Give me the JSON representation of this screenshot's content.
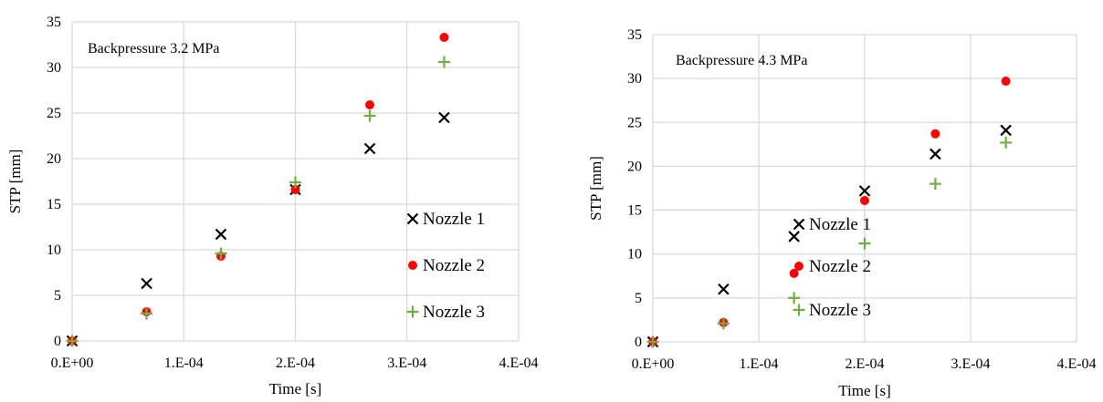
{
  "colors": {
    "nozzle1": "#000000",
    "nozzle2": "#ff0000",
    "nozzle3": "#70ad47",
    "grid": "#d9d9d9"
  },
  "chart_data": [
    {
      "type": "scatter",
      "title": "",
      "annotation": "Backpressure 3.2 MPa",
      "xlabel": "Time [s]",
      "ylabel": "STP [mm]",
      "xlim": [
        0,
        0.0004
      ],
      "ylim": [
        0,
        35
      ],
      "x_ticks": [
        0,
        0.0001,
        0.0002,
        0.0003,
        0.0004
      ],
      "x_tick_labels": [
        "0.E+00",
        "1.E-04",
        "2.E-04",
        "3.E-04",
        "4.E-04"
      ],
      "y_ticks": [
        0,
        5,
        10,
        15,
        20,
        25,
        30,
        35
      ],
      "y_tick_labels": [
        "0",
        "5",
        "10",
        "15",
        "20",
        "25",
        "30",
        "35"
      ],
      "grid": true,
      "legend": "right",
      "series": [
        {
          "name": "Nozzle 1",
          "marker": "x",
          "color": "#000000",
          "x": [
            0,
            6.67e-05,
            0.0001333,
            0.0002,
            0.0002667,
            0.0003333
          ],
          "y": [
            0,
            6.3,
            11.7,
            16.6,
            21.1,
            24.5
          ]
        },
        {
          "name": "Nozzle 2",
          "marker": "circle",
          "color": "#ff0000",
          "x": [
            0,
            6.67e-05,
            0.0001333,
            0.0002,
            0.0002667,
            0.0003333
          ],
          "y": [
            0,
            3.2,
            9.3,
            16.6,
            25.9,
            33.3
          ]
        },
        {
          "name": "Nozzle 3",
          "marker": "plus",
          "color": "#70ad47",
          "x": [
            0,
            6.67e-05,
            0.0001333,
            0.0002,
            0.0002667,
            0.0003333
          ],
          "y": [
            0,
            3.0,
            9.6,
            17.4,
            24.7,
            30.6
          ]
        }
      ]
    },
    {
      "type": "scatter",
      "title": "",
      "annotation": "Backpressure 4.3 MPa",
      "xlabel": "Time [s]",
      "ylabel": "STP [mm]",
      "xlim": [
        0,
        0.0004
      ],
      "ylim": [
        0,
        35
      ],
      "x_ticks": [
        0,
        0.0001,
        0.0002,
        0.0003,
        0.0004
      ],
      "x_tick_labels": [
        "0.E+00",
        "1.E-04",
        "2.E-04",
        "3.E-04",
        "4.E-04"
      ],
      "y_ticks": [
        0,
        5,
        10,
        15,
        20,
        25,
        30,
        35
      ],
      "y_tick_labels": [
        "0",
        "5",
        "10",
        "15",
        "20",
        "25",
        "30",
        "35"
      ],
      "grid": true,
      "legend": "right",
      "series": [
        {
          "name": "Nozzle 1",
          "marker": "x",
          "color": "#000000",
          "x": [
            0,
            6.67e-05,
            0.0001333,
            0.0002,
            0.0002667,
            0.0003333
          ],
          "y": [
            0,
            6.0,
            12.0,
            17.2,
            21.4,
            24.1
          ]
        },
        {
          "name": "Nozzle 2",
          "marker": "circle",
          "color": "#ff0000",
          "x": [
            0,
            6.67e-05,
            0.0001333,
            0.0002,
            0.0002667,
            0.0003333
          ],
          "y": [
            0,
            2.2,
            7.8,
            16.1,
            23.7,
            29.7
          ]
        },
        {
          "name": "Nozzle 3",
          "marker": "plus",
          "color": "#70ad47",
          "x": [
            0,
            6.67e-05,
            0.0001333,
            0.0002,
            0.0002667,
            0.0003333
          ],
          "y": [
            0,
            2.1,
            5.0,
            11.2,
            18.0,
            22.7
          ]
        }
      ]
    }
  ]
}
